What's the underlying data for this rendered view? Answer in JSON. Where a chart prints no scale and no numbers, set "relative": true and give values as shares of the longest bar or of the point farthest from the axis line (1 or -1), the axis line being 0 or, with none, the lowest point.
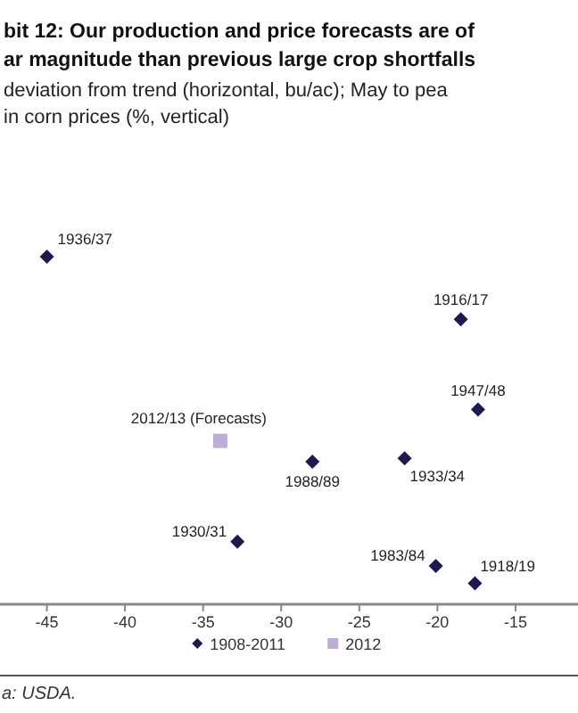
{
  "chart_data": {
    "type": "scatter",
    "title": "bit 12: Our production and price forecasts are of\nar magnitude than previous large crop shortfalls",
    "subtitle": "deviation from trend (horizontal, bu/ac); May to pea\nin corn prices (%, vertical)",
    "relative": true,
    "xlim": [
      -48,
      -11
    ],
    "xticks": [
      -45,
      -40,
      -35,
      -30,
      -25,
      -20,
      -15
    ],
    "legend": "bottom",
    "grid": false,
    "series": [
      {
        "name": "1908-2011",
        "color": "#1c1a4e",
        "marker": "diamond",
        "x": [
          -45,
          -18.5,
          -17.4,
          -28,
          -22.1,
          -32.8,
          -20.1,
          -17.6
        ],
        "values": [
          1,
          0.82,
          0.56,
          0.41,
          0.42,
          0.18,
          0.11,
          0.06
        ]
      },
      {
        "name": "2012",
        "color": "#bcaed8",
        "marker": "square",
        "x": [
          -33.9
        ],
        "values": [
          0.47
        ]
      }
    ],
    "annotations": [
      {
        "text": "1936/37",
        "x": -45,
        "y": 1
      },
      {
        "text": "1916/17",
        "x": -18.5,
        "y": 0.82
      },
      {
        "text": "1947/48",
        "x": -17.4,
        "y": 0.56
      },
      {
        "text": "2012/13 (Forecasts)",
        "x": -33.9,
        "y": 0.47
      },
      {
        "text": "1988/89",
        "x": -28,
        "y": 0.41
      },
      {
        "text": "1933/34",
        "x": -22.1,
        "y": 0.42
      },
      {
        "text": "1930/31",
        "x": -32.8,
        "y": 0.18
      },
      {
        "text": "1983/84",
        "x": -20.1,
        "y": 0.11
      },
      {
        "text": "1918/19",
        "x": -17.6,
        "y": 0.06
      },
      "a: USDA."
    ]
  }
}
